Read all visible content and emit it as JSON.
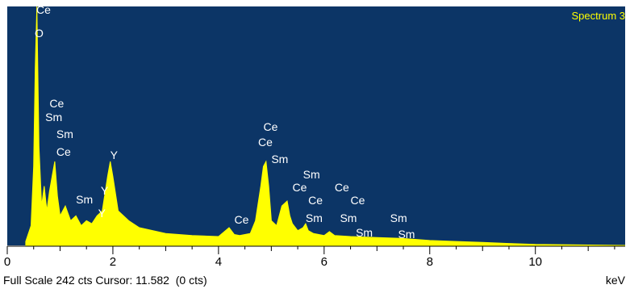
{
  "chart_data": {
    "type": "area",
    "spectrum_label": "Spectrum 3",
    "x_unit": "keV",
    "xlim": [
      0,
      11.7
    ],
    "ylim": [
      0,
      242
    ],
    "x_ticks": [
      0,
      2,
      4,
      6,
      8,
      10
    ],
    "x_tick_labels": [
      "0",
      "2",
      "4",
      "6",
      "8",
      "10"
    ],
    "footer": {
      "full_scale_label": "Full Scale 242 cts Cursor: 11.582  (0 cts)"
    },
    "spectrum": {
      "x": [
        0.35,
        0.45,
        0.5,
        0.53,
        0.56,
        0.6,
        0.65,
        0.7,
        0.75,
        0.8,
        0.85,
        0.9,
        0.95,
        1.0,
        1.05,
        1.1,
        1.2,
        1.3,
        1.4,
        1.5,
        1.6,
        1.7,
        1.8,
        1.9,
        1.95,
        2.0,
        2.1,
        2.2,
        2.3,
        2.5,
        3.0,
        3.5,
        4.0,
        4.2,
        4.3,
        4.4,
        4.6,
        4.7,
        4.8,
        4.85,
        4.9,
        4.95,
        5.0,
        5.1,
        5.2,
        5.3,
        5.35,
        5.4,
        5.5,
        5.6,
        5.65,
        5.7,
        5.8,
        6.0,
        6.1,
        6.2,
        6.5,
        7.0,
        7.5,
        8.0,
        8.5,
        9.0,
        9.5,
        10.0,
        11.7
      ],
      "y": [
        4,
        20,
        80,
        180,
        242,
        100,
        40,
        60,
        35,
        55,
        70,
        85,
        50,
        30,
        35,
        40,
        25,
        30,
        20,
        25,
        22,
        30,
        35,
        70,
        85,
        70,
        35,
        30,
        25,
        18,
        12,
        10,
        9,
        18,
        11,
        10,
        12,
        25,
        60,
        80,
        85,
        60,
        25,
        20,
        40,
        45,
        30,
        22,
        15,
        18,
        22,
        15,
        12,
        10,
        14,
        10,
        9,
        8,
        7,
        5,
        4,
        3,
        2,
        1,
        0
      ]
    },
    "peak_labels": [
      {
        "text": "Ce",
        "x": 0.55,
        "y": 238
      },
      {
        "text": "O",
        "x": 0.52,
        "y": 214
      },
      {
        "text": "Ce",
        "x": 0.8,
        "y": 143
      },
      {
        "text": "Sm",
        "x": 0.72,
        "y": 129
      },
      {
        "text": "Sm",
        "x": 0.93,
        "y": 112
      },
      {
        "text": "Ce",
        "x": 0.93,
        "y": 94
      },
      {
        "text": "Y",
        "x": 1.95,
        "y": 91
      },
      {
        "text": "Sm",
        "x": 1.3,
        "y": 46
      },
      {
        "text": "Y",
        "x": 1.77,
        "y": 55
      },
      {
        "text": "Y",
        "x": 1.72,
        "y": 32
      },
      {
        "text": "Ce",
        "x": 4.85,
        "y": 119
      },
      {
        "text": "Ce",
        "x": 4.75,
        "y": 104
      },
      {
        "text": "Sm",
        "x": 5.0,
        "y": 87
      },
      {
        "text": "Sm",
        "x": 5.6,
        "y": 71
      },
      {
        "text": "Ce",
        "x": 5.4,
        "y": 58
      },
      {
        "text": "Ce",
        "x": 6.2,
        "y": 58
      },
      {
        "text": "Ce",
        "x": 5.7,
        "y": 45
      },
      {
        "text": "Ce",
        "x": 6.5,
        "y": 45
      },
      {
        "text": "Ce",
        "x": 4.3,
        "y": 25
      },
      {
        "text": "Sm",
        "x": 5.65,
        "y": 27
      },
      {
        "text": "Sm",
        "x": 6.3,
        "y": 27
      },
      {
        "text": "Sm",
        "x": 7.25,
        "y": 27
      },
      {
        "text": "Sm",
        "x": 6.6,
        "y": 12
      },
      {
        "text": "Sm",
        "x": 7.4,
        "y": 11
      }
    ],
    "colors": {
      "plot_background": "#0c3566",
      "spectrum_fill": "#ffff00",
      "label_text": "#ffffff",
      "title_text": "#ffff00"
    }
  }
}
